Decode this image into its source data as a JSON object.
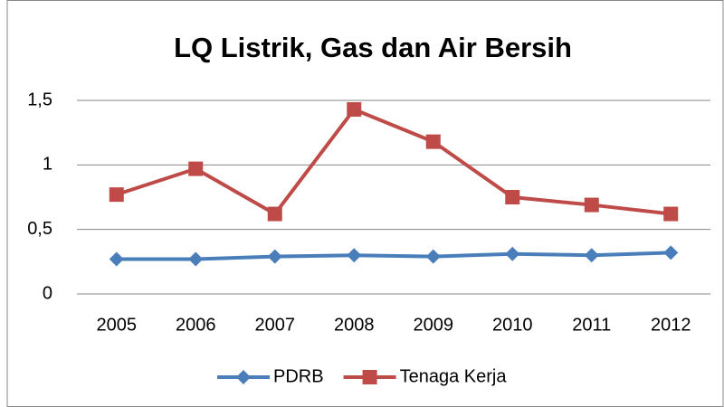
{
  "chart_data": {
    "type": "line",
    "title": "LQ Listrik, Gas dan Air Bersih",
    "categories": [
      "2005",
      "2006",
      "2007",
      "2008",
      "2009",
      "2010",
      "2011",
      "2012"
    ],
    "series": [
      {
        "name": "PDRB",
        "color": "#4a7ebb",
        "marker": "diamond",
        "values": [
          0.27,
          0.27,
          0.29,
          0.3,
          0.29,
          0.31,
          0.3,
          0.32
        ]
      },
      {
        "name": "Tenaga Kerja",
        "color": "#be4b48",
        "marker": "square",
        "values": [
          0.77,
          0.97,
          0.62,
          1.43,
          1.18,
          0.75,
          0.69,
          0.62
        ]
      }
    ],
    "ylim": [
      0,
      1.5
    ],
    "yticks": [
      0,
      {
        "value": 0.5,
        "label": "0,5"
      },
      1,
      {
        "value": 1.5,
        "label": "1,5"
      }
    ],
    "grid": true,
    "legend": "bottom"
  }
}
